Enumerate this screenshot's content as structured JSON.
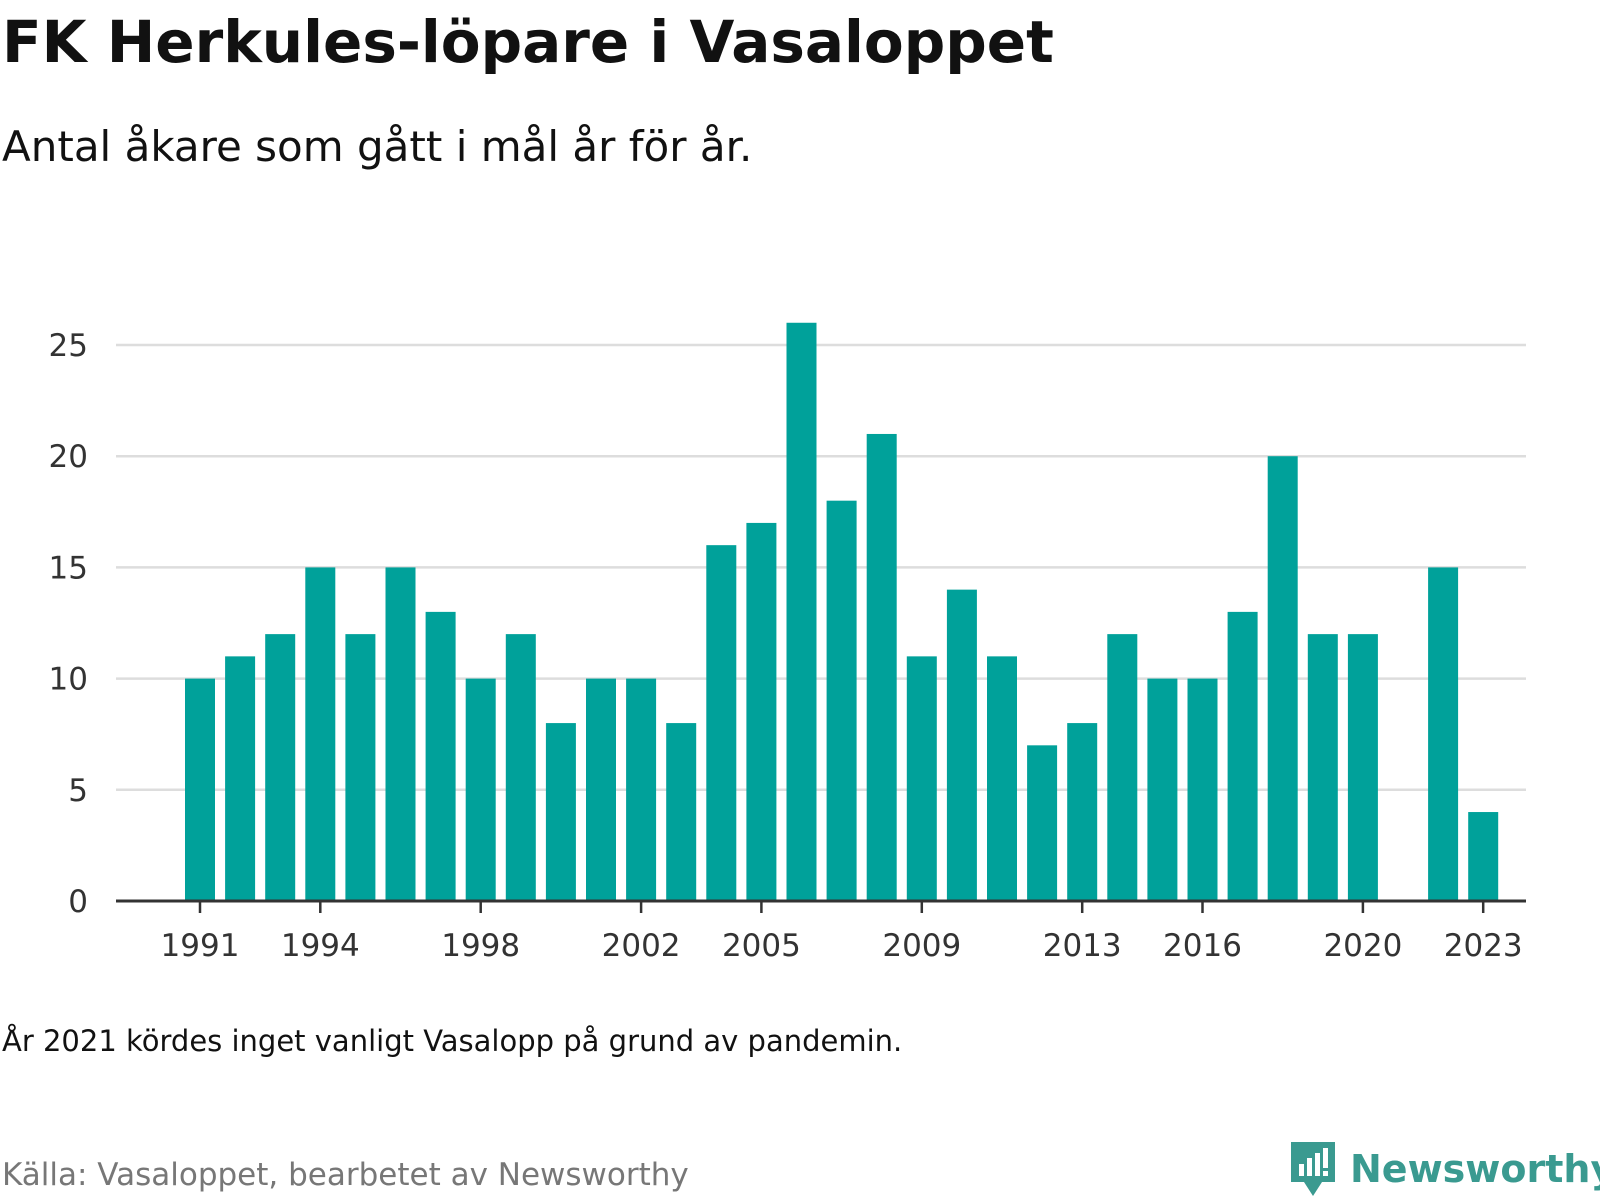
{
  "title": "FK Herkules-löpare i Vasaloppet",
  "subtitle": "Antal åkare som gått i mål år för år.",
  "note": "År 2021 kördes inget vanligt Vasalopp på grund av pandemin.",
  "source": "Källa: Vasaloppet, bearbetet av Newsworthy",
  "logo": {
    "text": "Newsworthy",
    "icon": "newsworthy-logo-icon",
    "color": "#3a9a90"
  },
  "colors": {
    "bar": "#00a19a",
    "grid": "#dddddd",
    "axis": "#333333"
  },
  "chart_data": {
    "type": "bar",
    "x": [
      1991,
      1992,
      1993,
      1994,
      1995,
      1996,
      1997,
      1998,
      1999,
      2000,
      2001,
      2002,
      2003,
      2004,
      2005,
      2006,
      2007,
      2008,
      2009,
      2010,
      2011,
      2012,
      2013,
      2014,
      2015,
      2016,
      2017,
      2018,
      2019,
      2020,
      2021,
      2022,
      2023
    ],
    "values": [
      10,
      11,
      12,
      15,
      12,
      15,
      13,
      10,
      12,
      8,
      10,
      10,
      8,
      16,
      17,
      26,
      18,
      21,
      11,
      14,
      11,
      7,
      8,
      12,
      10,
      10,
      13,
      20,
      12,
      12,
      null,
      15,
      4
    ],
    "x_tick_labels": [
      "1991",
      "1994",
      "1998",
      "2002",
      "2005",
      "2009",
      "2013",
      "2016",
      "2020",
      "2023"
    ],
    "y_ticks": [
      0,
      5,
      10,
      15,
      20,
      25
    ],
    "ylim": [
      0,
      26
    ],
    "grid": true,
    "legend": "none"
  }
}
